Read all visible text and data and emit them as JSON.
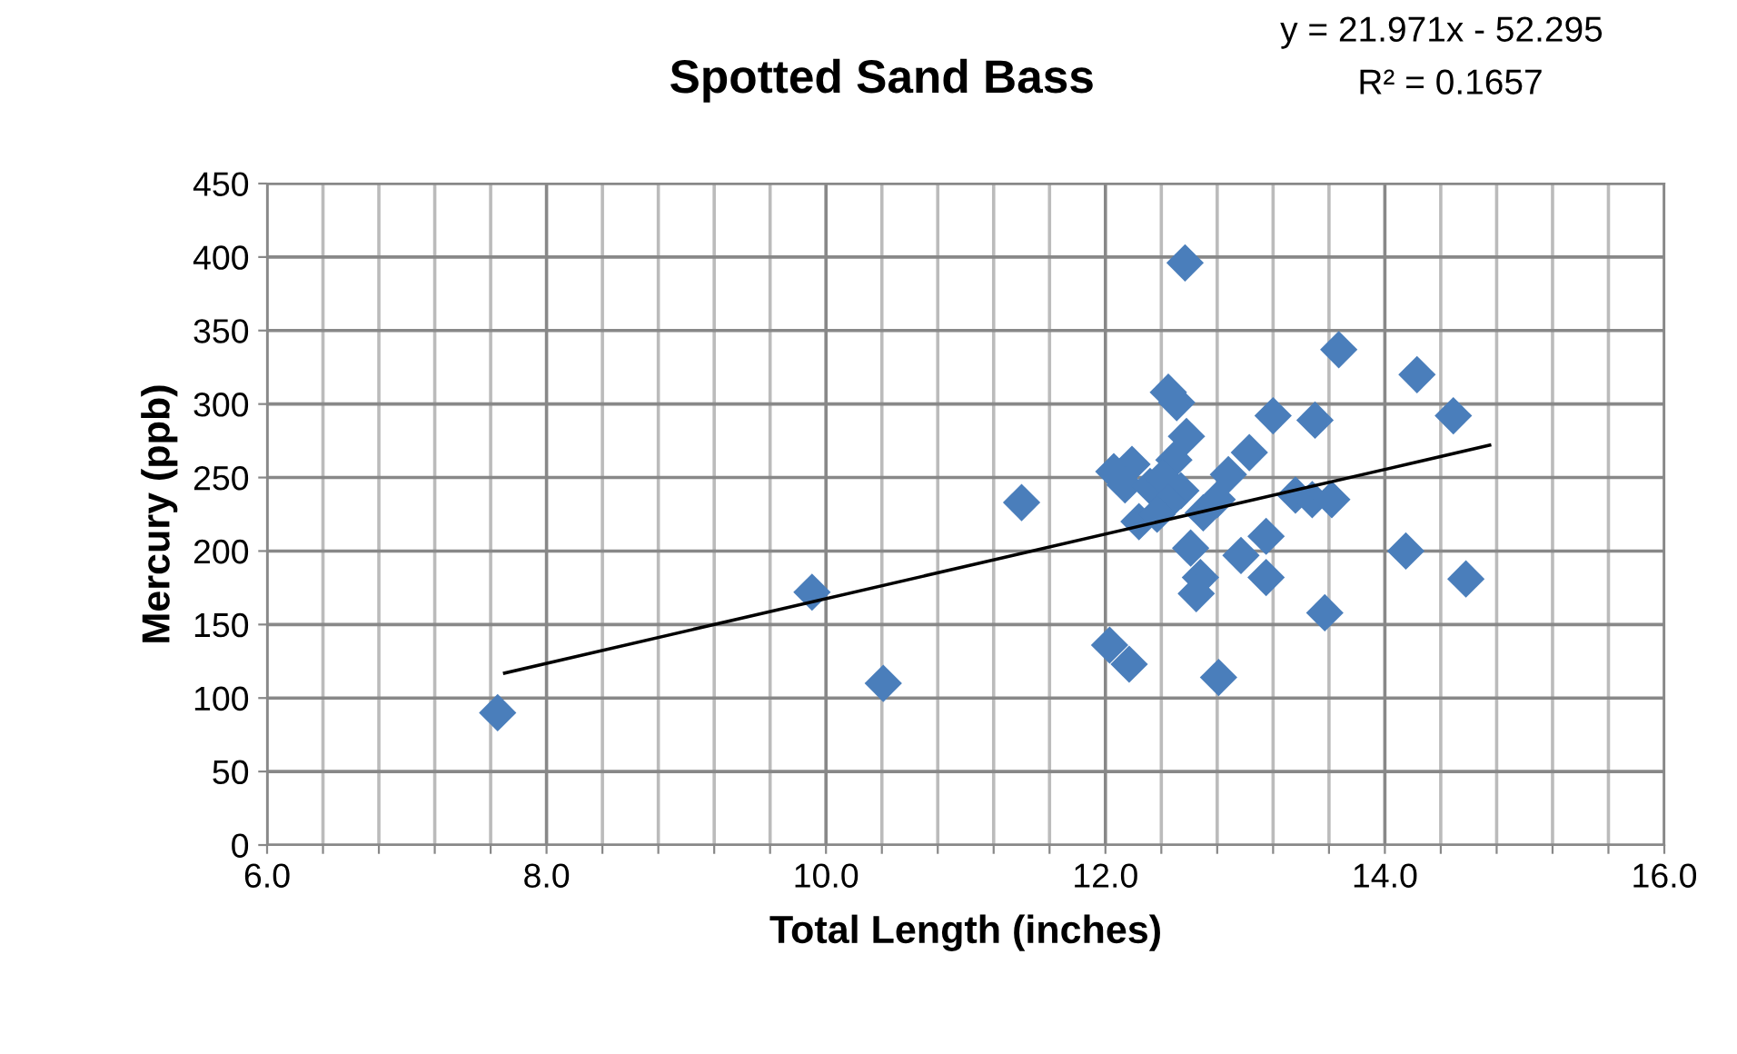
{
  "chart_data": {
    "type": "scatter",
    "title": "Spotted Sand Bass",
    "xlabel": "Total Length (inches)",
    "ylabel": "Mercury (ppb)",
    "annotations": [
      "y = 21.971x - 52.295",
      "R² = 0.1657"
    ],
    "xlim": [
      6,
      16
    ],
    "xticks": [
      {
        "value": 6,
        "label": "6.0"
      },
      {
        "value": 6.4,
        "label": null
      },
      {
        "value": 6.8,
        "label": null
      },
      {
        "value": 7.2,
        "label": null
      },
      {
        "value": 7.6,
        "label": null
      },
      {
        "value": 8,
        "label": "8.0"
      },
      {
        "value": 8.4,
        "label": null
      },
      {
        "value": 8.8,
        "label": null
      },
      {
        "value": 9.2,
        "label": null
      },
      {
        "value": 9.6,
        "label": null
      },
      {
        "value": 10,
        "label": "10.0"
      },
      {
        "value": 10.4,
        "label": null
      },
      {
        "value": 10.8,
        "label": null
      },
      {
        "value": 11.2,
        "label": null
      },
      {
        "value": 11.6,
        "label": null
      },
      {
        "value": 12,
        "label": "12.0"
      },
      {
        "value": 12.4,
        "label": null
      },
      {
        "value": 12.8,
        "label": null
      },
      {
        "value": 13.2,
        "label": null
      },
      {
        "value": 13.6,
        "label": null
      },
      {
        "value": 14,
        "label": "14.0"
      },
      {
        "value": 14.4,
        "label": null
      },
      {
        "value": 14.8,
        "label": null
      },
      {
        "value": 15.2,
        "label": null
      },
      {
        "value": 15.6,
        "label": null
      },
      {
        "value": 16,
        "label": "16.0"
      }
    ],
    "ylim": [
      0,
      450
    ],
    "yticks": [
      0,
      50,
      100,
      150,
      200,
      250,
      300,
      350,
      400,
      450
    ],
    "grid": true,
    "marker": "diamond",
    "series": [
      {
        "color": "#4a7ebb",
        "x": [
          7.65,
          9.9,
          10.41,
          11.4,
          12.03,
          12.17,
          12.81,
          12.57,
          12.45,
          12.51,
          13.67,
          14.23,
          14.49,
          13.2,
          13.5,
          13.03,
          12.58,
          12.88,
          12.49,
          12.06,
          12.19,
          12.14,
          12.32,
          12.41,
          12.54,
          12.45,
          12.24,
          12.37,
          12.61,
          12.7,
          12.8,
          12.61,
          12.97,
          13.15,
          13.15,
          12.68,
          12.65,
          13.36,
          13.48,
          13.62,
          13.57,
          14.15,
          14.58
        ],
        "values": [
          90,
          172,
          110,
          233,
          136,
          123,
          114,
          396,
          308,
          301,
          337,
          320,
          292,
          292,
          289,
          267,
          278,
          252,
          262,
          254,
          259,
          245,
          244,
          250,
          241,
          233,
          220,
          225,
          null,
          226,
          235,
          202,
          197,
          210,
          182,
          182,
          171,
          238,
          235,
          235,
          158,
          200,
          181
        ]
      },
      {
        "type": "line",
        "marker": "none",
        "color": "#000000",
        "x": [
          7.7,
          14.75
        ],
        "values": [
          117,
          272
        ]
      }
    ]
  }
}
